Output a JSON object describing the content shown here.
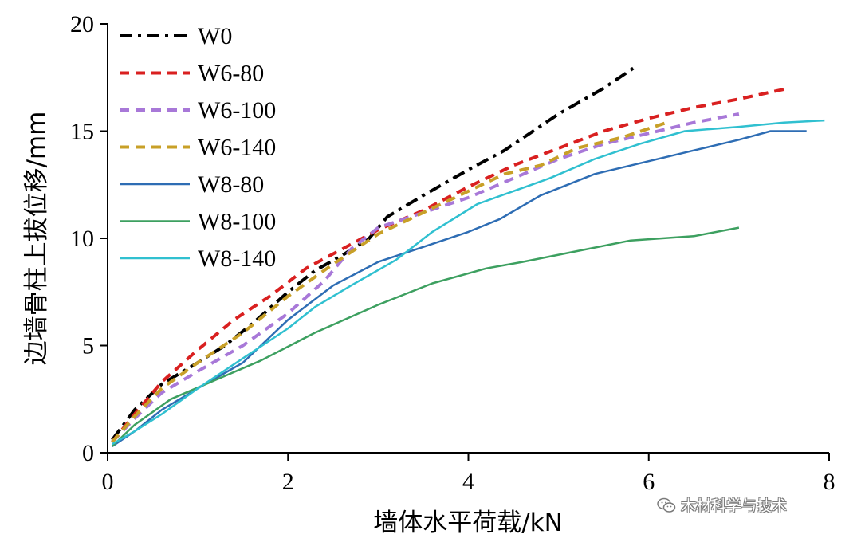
{
  "chart_data": {
    "type": "line",
    "title": "",
    "xlabel": "墙体水平荷载/kN",
    "ylabel": "边墙骨柱上拔位移/mm",
    "xlim": [
      0,
      8
    ],
    "ylim": [
      0,
      20
    ],
    "xticks": [
      0,
      2,
      4,
      6,
      8
    ],
    "yticks": [
      0,
      5,
      10,
      15,
      20
    ],
    "xtick_labels": [
      "0",
      "2",
      "4",
      "6",
      "8"
    ],
    "ytick_labels": [
      "0",
      "5",
      "10",
      "15",
      "20"
    ],
    "grid": false,
    "legend_position": "top-left",
    "series": [
      {
        "name": "W0",
        "color": "#000000",
        "dash": "dashdot",
        "width": 4,
        "x": [
          0.05,
          0.3,
          0.6,
          1.0,
          1.3,
          1.6,
          2.0,
          2.3,
          2.6,
          2.9,
          3.1,
          3.5,
          4.0,
          4.4,
          5.0,
          5.5,
          5.85
        ],
        "y": [
          0.6,
          2.0,
          3.2,
          4.2,
          5.0,
          6.0,
          7.5,
          8.5,
          9.2,
          10.0,
          11.0,
          12.0,
          13.2,
          14.1,
          15.8,
          17.0,
          18.0
        ]
      },
      {
        "name": "W6-80",
        "color": "#d92020",
        "dash": "dashed",
        "width": 4,
        "x": [
          0.05,
          0.3,
          0.6,
          1.0,
          1.4,
          1.8,
          2.2,
          2.6,
          3.0,
          3.5,
          4.0,
          4.5,
          5.0,
          5.5,
          6.0,
          6.5,
          7.0,
          7.55
        ],
        "y": [
          0.5,
          1.8,
          3.3,
          4.8,
          6.2,
          7.3,
          8.6,
          9.5,
          10.4,
          11.3,
          12.4,
          13.4,
          14.2,
          15.0,
          15.6,
          16.1,
          16.5,
          17.0
        ]
      },
      {
        "name": "W6-100",
        "color": "#a878d8",
        "dash": "dashed",
        "width": 4,
        "x": [
          0.05,
          0.3,
          0.6,
          1.0,
          1.5,
          2.0,
          2.4,
          2.7,
          3.0,
          3.5,
          4.0,
          4.5,
          5.0,
          5.5,
          6.0,
          6.5,
          7.0
        ],
        "y": [
          0.5,
          1.6,
          2.8,
          3.8,
          5.0,
          6.5,
          8.0,
          9.5,
          10.5,
          11.2,
          11.9,
          12.8,
          13.7,
          14.4,
          14.9,
          15.4,
          15.8
        ]
      },
      {
        "name": "W6-140",
        "color": "#c8a028",
        "dash": "dashed",
        "width": 4,
        "x": [
          0.05,
          0.3,
          0.6,
          1.0,
          1.5,
          2.0,
          2.5,
          3.0,
          3.5,
          4.0,
          4.4,
          4.8,
          5.2,
          5.7,
          6.2
        ],
        "y": [
          0.5,
          1.7,
          3.0,
          4.2,
          5.6,
          7.3,
          8.8,
          10.2,
          11.2,
          12.2,
          13.0,
          13.4,
          14.2,
          14.7,
          15.4
        ]
      },
      {
        "name": "W8-80",
        "color": "#2e6db4",
        "dash": "solid",
        "width": 2.5,
        "x": [
          0.05,
          0.3,
          0.6,
          1.0,
          1.5,
          2.0,
          2.5,
          3.0,
          3.5,
          4.0,
          4.35,
          4.8,
          5.4,
          6.0,
          6.5,
          7.0,
          7.35,
          7.5,
          7.75
        ],
        "y": [
          0.3,
          1.0,
          2.0,
          3.0,
          4.2,
          6.2,
          7.8,
          8.9,
          9.6,
          10.3,
          10.9,
          12.0,
          13.0,
          13.6,
          14.1,
          14.6,
          15.0,
          15.0,
          15.0
        ]
      },
      {
        "name": "W8-100",
        "color": "#3da060",
        "dash": "solid",
        "width": 2.5,
        "x": [
          0.05,
          0.3,
          0.7,
          1.2,
          1.7,
          2.3,
          3.0,
          3.6,
          4.2,
          4.6,
          5.2,
          5.8,
          6.5,
          7.0
        ],
        "y": [
          0.3,
          1.3,
          2.5,
          3.4,
          4.3,
          5.6,
          6.9,
          7.9,
          8.6,
          8.9,
          9.4,
          9.9,
          10.1,
          10.5
        ]
      },
      {
        "name": "W8-140",
        "color": "#30c0d0",
        "dash": "solid",
        "width": 2.5,
        "x": [
          0.05,
          0.3,
          0.6,
          1.0,
          1.5,
          2.0,
          2.3,
          2.7,
          3.2,
          3.6,
          4.1,
          4.5,
          4.9,
          5.4,
          5.9,
          6.4,
          7.0,
          7.5,
          7.95
        ],
        "y": [
          0.4,
          1.0,
          1.8,
          3.0,
          4.4,
          5.8,
          6.8,
          7.8,
          9.0,
          10.3,
          11.6,
          12.2,
          12.8,
          13.7,
          14.4,
          15.0,
          15.2,
          15.4,
          15.5
        ]
      }
    ]
  },
  "watermark": {
    "icon": "wechat-icon",
    "text": "木材科学与技术"
  }
}
